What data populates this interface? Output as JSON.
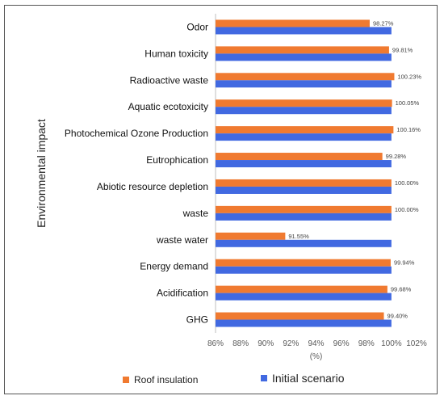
{
  "chart_data": {
    "type": "bar",
    "orientation": "horizontal",
    "ylabel": "Environmental impact",
    "xlabel": "(%)",
    "xlim": [
      86,
      102
    ],
    "xticks": [
      86,
      88,
      90,
      92,
      94,
      96,
      98,
      100,
      102
    ],
    "xtick_suffix": "%",
    "categories": [
      "Odor",
      "Human toxicity",
      "Radioactive waste",
      "Aquatic ecotoxicity",
      "Photochemical Ozone Production",
      "Eutrophication",
      "Abiotic resource depletion",
      "waste",
      "waste water",
      "Energy demand",
      "Acidification",
      "GHG"
    ],
    "series": [
      {
        "name": "Roof insulation",
        "color": "#f07a30",
        "values": [
          98.27,
          99.81,
          100.23,
          100.05,
          100.16,
          99.28,
          100.0,
          100.0,
          91.55,
          99.94,
          99.68,
          99.4
        ],
        "labels": [
          "98.27%",
          "99.81%",
          "100.23%",
          "100.05%",
          "100.16%",
          "99.28%",
          "100.00%",
          "100.00%",
          "91.55%",
          "99.94%",
          "99.68%",
          "99.40%"
        ]
      },
      {
        "name": "Initial scenario",
        "color": "#4169e1",
        "values": [
          100,
          100,
          100,
          100,
          100,
          100,
          100,
          100,
          100,
          100,
          100,
          100
        ]
      }
    ],
    "grid": false,
    "legend": "bottom"
  }
}
